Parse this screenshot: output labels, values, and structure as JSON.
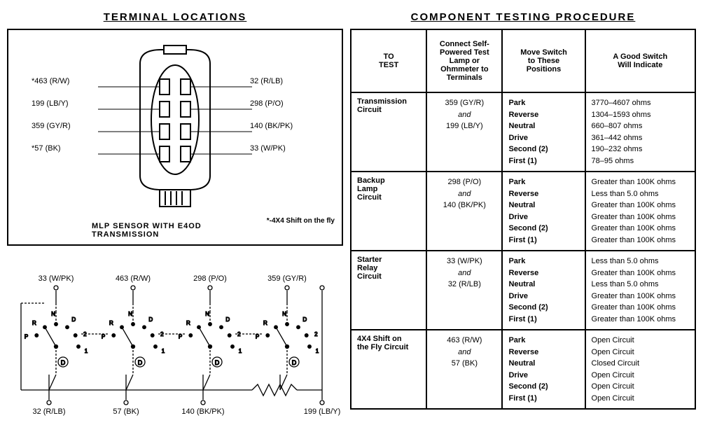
{
  "titles": {
    "left": "TERMINAL  LOCATIONS",
    "right": "COMPONENT  TESTING  PROCEDURE"
  },
  "connector": {
    "caption": "MLP SENSOR WITH E4OD TRANSMISSION",
    "footnote": "*-4X4 Shift on the fly",
    "left_pins": [
      {
        "name": "pin-463",
        "label": "*463 (R/W)"
      },
      {
        "name": "pin-199",
        "label": "199 (LB/Y)"
      },
      {
        "name": "pin-359",
        "label": "359 (GY/R)"
      },
      {
        "name": "pin-57",
        "label": "*57 (BK)"
      }
    ],
    "right_pins": [
      {
        "name": "pin-32",
        "label": "32 (R/LB)"
      },
      {
        "name": "pin-298",
        "label": "298 (P/O)"
      },
      {
        "name": "pin-140",
        "label": "140 (BK/PK)"
      },
      {
        "name": "pin-33",
        "label": "33 (W/PK)"
      }
    ],
    "svg": {
      "body_stroke": "#000000",
      "body_fill": "#ffffff",
      "pin_fill": "#ffffff"
    }
  },
  "schematic": {
    "top_labels": [
      "33 (W/PK)",
      "463 (R/W)",
      "298 (P/O)",
      "359 (GY/R)"
    ],
    "bottom_labels": [
      "32 (R/LB)",
      "57 (BK)",
      "140 (BK/PK)",
      "199 (LB/Y)"
    ],
    "positions": [
      "P",
      "R",
      "N",
      "D",
      "2",
      "1"
    ],
    "d_marker": "D",
    "stroke": "#000000"
  },
  "table": {
    "columns": [
      {
        "key": "to_test",
        "header": "TO\nTEST",
        "width": "22%"
      },
      {
        "key": "connect",
        "header": "Connect Self-\nPowered Test\nLamp or\nOhmmeter to\nTerminals",
        "width": "22%"
      },
      {
        "key": "positions",
        "header": "Move Switch\nto These\nPositions",
        "width": "24%"
      },
      {
        "key": "indicate",
        "header": "A Good Switch\nWill Indicate",
        "width": "32%"
      }
    ],
    "positions_all": [
      "Park",
      "Reverse",
      "Neutral",
      "Drive",
      "Second  (2)",
      "First  (1)"
    ],
    "rows": [
      {
        "circuit": "Transmission\nCircuit",
        "connect": {
          "top": "359 (GY/R)",
          "and": "and",
          "bottom": "199 (LB/Y)"
        },
        "indicate": [
          "3770–4607  ohms",
          "1304–1593  ohms",
          "660–807  ohms",
          "361–442  ohms",
          "190–232  ohms",
          "78–95  ohms"
        ]
      },
      {
        "circuit": "Backup\nLamp\nCircuit",
        "connect": {
          "top": "298 (P/O)",
          "and": "and",
          "bottom": "140 (BK/PK)"
        },
        "indicate": [
          "Greater than 100K ohms",
          "Less than 5.0 ohms",
          "Greater than 100K ohms",
          "Greater than 100K ohms",
          "Greater than 100K ohms",
          "Greater than 100K ohms"
        ]
      },
      {
        "circuit": "Starter\nRelay\nCircuit",
        "connect": {
          "top": "33 (W/PK)",
          "and": "and",
          "bottom": "32 (R/LB)"
        },
        "indicate": [
          "Less than 5.0 ohms",
          "Greater than 100K ohms",
          "Less than 5.0 ohms",
          "Greater than 100K ohms",
          "Greater than 100K ohms",
          "Greater than 100K ohms"
        ]
      },
      {
        "circuit": "4X4 Shift on\nthe Fly Circuit",
        "connect": {
          "top": "463 (R/W)",
          "and": "and",
          "bottom": "57 (BK)"
        },
        "indicate": [
          "Open Circuit",
          "Open Circuit",
          "Closed Circuit",
          "Open Circuit",
          "Open Circuit",
          "Open Circuit"
        ]
      }
    ]
  }
}
